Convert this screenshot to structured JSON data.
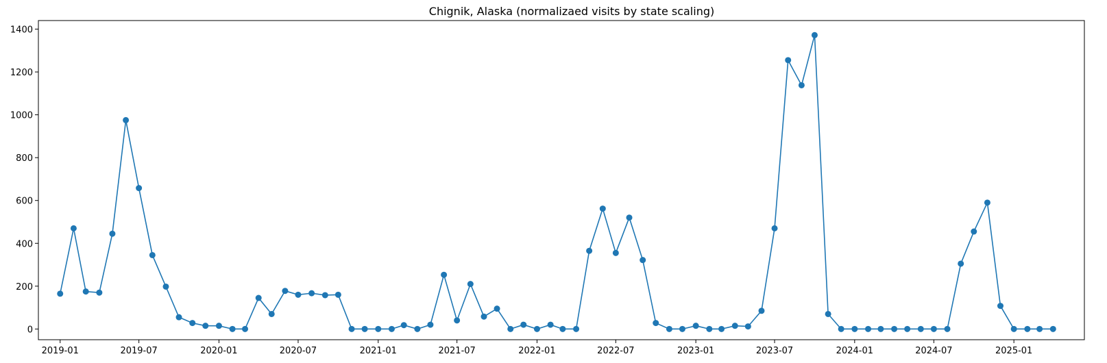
{
  "chart_data": {
    "type": "line",
    "title": "Chignik, Alaska (normalizaed visits by state scaling)",
    "xlabel": "",
    "ylabel": "",
    "xlim": [
      "2018-11-12",
      "2025-06-12"
    ],
    "ylim": [
      -50,
      1440
    ],
    "grid": false,
    "legend": "none",
    "marker": "circle",
    "color": "#1f77b4",
    "x_ticks": [
      "2019-01",
      "2019-07",
      "2020-01",
      "2020-07",
      "2021-01",
      "2021-07",
      "2022-01",
      "2022-07",
      "2023-01",
      "2023-07",
      "2024-01",
      "2024-07",
      "2025-01"
    ],
    "y_ticks": [
      0,
      200,
      400,
      600,
      800,
      1000,
      1200,
      1400
    ],
    "series": [
      {
        "x": [
          "2019-01-01",
          "2019-02-01",
          "2019-03-01",
          "2019-04-01",
          "2019-05-01",
          "2019-06-01",
          "2019-07-01",
          "2019-08-01",
          "2019-09-01",
          "2019-10-01",
          "2019-11-01",
          "2019-12-01",
          "2020-01-01",
          "2020-02-01",
          "2020-03-01",
          "2020-04-01",
          "2020-05-01",
          "2020-06-01",
          "2020-07-01",
          "2020-08-01",
          "2020-09-01",
          "2020-10-01",
          "2020-11-01",
          "2020-12-01",
          "2021-01-01",
          "2021-02-01",
          "2021-03-01",
          "2021-04-01",
          "2021-05-01",
          "2021-06-01",
          "2021-07-01",
          "2021-08-01",
          "2021-09-01",
          "2021-10-01",
          "2021-11-01",
          "2021-12-01",
          "2022-01-01",
          "2022-02-01",
          "2022-03-01",
          "2022-04-01",
          "2022-05-01",
          "2022-06-01",
          "2022-07-01",
          "2022-08-01",
          "2022-09-01",
          "2022-10-01",
          "2022-11-01",
          "2022-12-01",
          "2023-01-01",
          "2023-02-01",
          "2023-03-01",
          "2023-04-01",
          "2023-05-01",
          "2023-06-01",
          "2023-07-01",
          "2023-08-01",
          "2023-09-01",
          "2023-10-01",
          "2023-11-01",
          "2023-12-01",
          "2024-01-01",
          "2024-02-01",
          "2024-03-01",
          "2024-04-01",
          "2024-05-01",
          "2024-06-01",
          "2024-07-01",
          "2024-08-01",
          "2024-09-01",
          "2024-10-01",
          "2024-11-01",
          "2024-12-01",
          "2025-01-01",
          "2025-02-01",
          "2025-03-01",
          "2025-04-01"
        ],
        "values": [
          165,
          470,
          175,
          170,
          445,
          975,
          658,
          345,
          198,
          55,
          28,
          15,
          15,
          0,
          0,
          145,
          70,
          178,
          160,
          167,
          158,
          160,
          0,
          0,
          0,
          0,
          18,
          0,
          20,
          253,
          40,
          210,
          58,
          95,
          0,
          20,
          0,
          20,
          0,
          0,
          365,
          562,
          355,
          520,
          322,
          28,
          0,
          0,
          15,
          0,
          0,
          15,
          12,
          85,
          470,
          1255,
          1138,
          1372,
          70,
          0,
          0,
          0,
          0,
          0,
          0,
          0,
          0,
          0,
          305,
          455,
          590,
          108,
          0,
          0,
          0,
          0
        ]
      }
    ]
  }
}
